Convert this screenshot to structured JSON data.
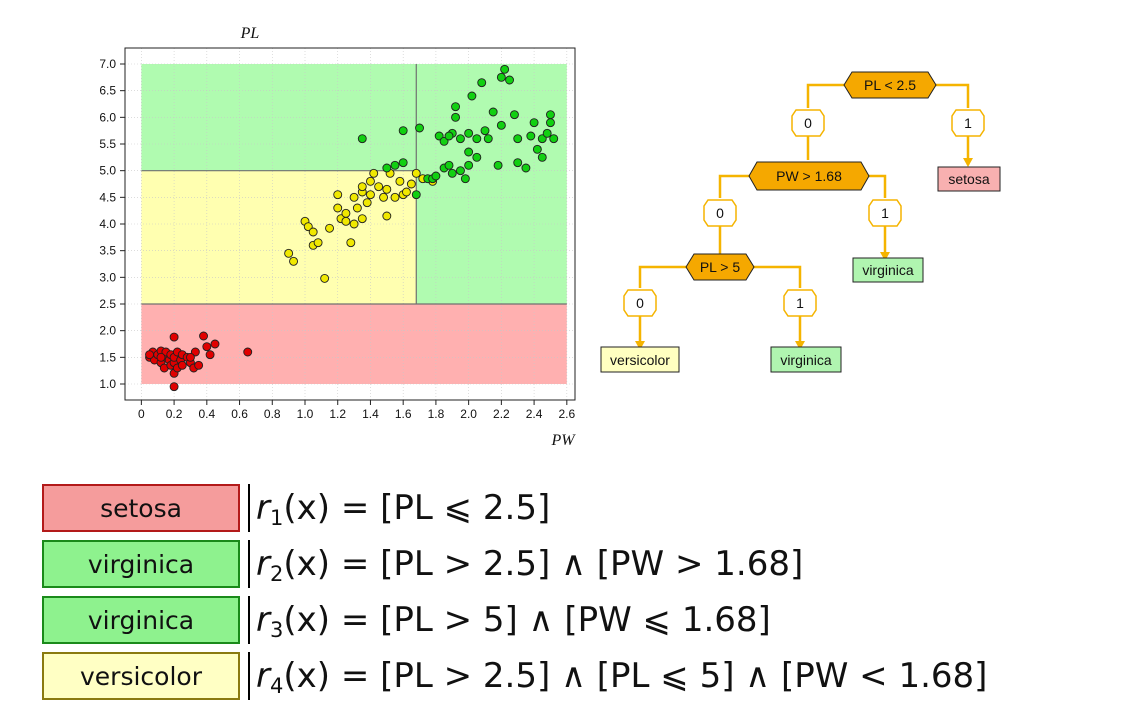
{
  "chart_data": {
    "type": "scatter",
    "title": "",
    "xlabel": "PW",
    "ylabel": "PL",
    "xlim": [
      -0.1,
      2.65
    ],
    "ylim": [
      0.7,
      7.3
    ],
    "xticks": [
      "0",
      "0.2",
      "0.4",
      "0.6",
      "0.8",
      "1.0",
      "1.2",
      "1.4",
      "1.6",
      "1.8",
      "2.0",
      "2.2",
      "2.4",
      "2.6"
    ],
    "yticks": [
      "1.0",
      "1.5",
      "2.0",
      "2.5",
      "3.0",
      "3.5",
      "4.0",
      "4.5",
      "5.0",
      "5.5",
      "6.0",
      "6.5",
      "7.0"
    ],
    "grid": true,
    "regions": [
      {
        "class": "setosa",
        "x0": 0.0,
        "x1": 2.6,
        "y0": 1.0,
        "y1": 2.5,
        "color": "#ffb0b0"
      },
      {
        "class": "versicolor",
        "x0": 0.0,
        "x1": 1.68,
        "y0": 2.5,
        "y1": 5.0,
        "color": "#ffffb0"
      },
      {
        "class": "virginica",
        "x0": 1.68,
        "x1": 2.6,
        "y0": 2.5,
        "y1": 7.0,
        "color": "#b0fbb0"
      },
      {
        "class": "virginica",
        "x0": 0.0,
        "x1": 1.68,
        "y0": 5.0,
        "y1": 7.0,
        "color": "#b0fbb0"
      }
    ],
    "series": [
      {
        "class": "setosa",
        "color": "#e00000",
        "points": [
          [
            0.05,
            1.5
          ],
          [
            0.07,
            1.6
          ],
          [
            0.08,
            1.45
          ],
          [
            0.1,
            1.55
          ],
          [
            0.12,
            1.4
          ],
          [
            0.12,
            1.62
          ],
          [
            0.14,
            1.3
          ],
          [
            0.15,
            1.5
          ],
          [
            0.15,
            1.6
          ],
          [
            0.17,
            1.45
          ],
          [
            0.18,
            1.35
          ],
          [
            0.18,
            1.55
          ],
          [
            0.2,
            1.2
          ],
          [
            0.2,
            1.4
          ],
          [
            0.2,
            1.5
          ],
          [
            0.22,
            1.6
          ],
          [
            0.22,
            1.3
          ],
          [
            0.24,
            1.45
          ],
          [
            0.25,
            1.55
          ],
          [
            0.28,
            1.5
          ],
          [
            0.3,
            1.4
          ],
          [
            0.32,
            1.3
          ],
          [
            0.33,
            1.6
          ],
          [
            0.35,
            1.35
          ],
          [
            0.38,
            1.9
          ],
          [
            0.4,
            1.7
          ],
          [
            0.42,
            1.55
          ],
          [
            0.45,
            1.75
          ],
          [
            0.65,
            1.6
          ],
          [
            0.2,
            0.95
          ],
          [
            0.2,
            1.88
          ],
          [
            0.05,
            1.55
          ],
          [
            0.12,
            1.5
          ],
          [
            0.25,
            1.35
          ],
          [
            0.3,
            1.5
          ]
        ]
      },
      {
        "class": "versicolor",
        "color": "#f0e800",
        "points": [
          [
            0.9,
            3.45
          ],
          [
            0.93,
            3.3
          ],
          [
            1.0,
            4.05
          ],
          [
            1.02,
            3.95
          ],
          [
            1.05,
            3.85
          ],
          [
            1.05,
            3.6
          ],
          [
            1.08,
            3.65
          ],
          [
            1.12,
            2.98
          ],
          [
            1.15,
            3.92
          ],
          [
            1.2,
            4.3
          ],
          [
            1.22,
            4.1
          ],
          [
            1.25,
            4.05
          ],
          [
            1.25,
            4.2
          ],
          [
            1.28,
            3.65
          ],
          [
            1.3,
            4.5
          ],
          [
            1.3,
            4.0
          ],
          [
            1.32,
            4.3
          ],
          [
            1.35,
            4.6
          ],
          [
            1.35,
            4.7
          ],
          [
            1.38,
            4.4
          ],
          [
            1.4,
            4.8
          ],
          [
            1.4,
            4.55
          ],
          [
            1.45,
            4.7
          ],
          [
            1.48,
            4.5
          ],
          [
            1.5,
            4.15
          ],
          [
            1.5,
            4.65
          ],
          [
            1.52,
            4.95
          ],
          [
            1.55,
            4.5
          ],
          [
            1.58,
            4.8
          ],
          [
            1.6,
            4.55
          ],
          [
            1.62,
            4.6
          ],
          [
            1.65,
            4.75
          ],
          [
            1.68,
            4.95
          ],
          [
            1.72,
            4.85
          ],
          [
            1.78,
            4.8
          ],
          [
            1.2,
            4.55
          ],
          [
            1.42,
            4.95
          ],
          [
            1.35,
            4.1
          ]
        ]
      },
      {
        "class": "virginica",
        "color": "#11d011",
        "points": [
          [
            1.35,
            5.6
          ],
          [
            1.5,
            5.05
          ],
          [
            1.55,
            5.1
          ],
          [
            1.6,
            5.75
          ],
          [
            1.6,
            5.15
          ],
          [
            1.68,
            4.55
          ],
          [
            1.7,
            5.8
          ],
          [
            1.75,
            4.85
          ],
          [
            1.78,
            4.85
          ],
          [
            1.8,
            4.9
          ],
          [
            1.82,
            5.65
          ],
          [
            1.85,
            5.05
          ],
          [
            1.85,
            5.55
          ],
          [
            1.88,
            5.1
          ],
          [
            1.9,
            5.7
          ],
          [
            1.9,
            4.95
          ],
          [
            1.92,
            6.2
          ],
          [
            1.95,
            5.6
          ],
          [
            1.95,
            5.0
          ],
          [
            1.98,
            4.85
          ],
          [
            2.0,
            5.7
          ],
          [
            2.0,
            5.35
          ],
          [
            2.0,
            5.1
          ],
          [
            2.02,
            6.4
          ],
          [
            2.05,
            5.6
          ],
          [
            2.05,
            5.25
          ],
          [
            2.08,
            6.65
          ],
          [
            2.1,
            5.75
          ],
          [
            2.12,
            5.6
          ],
          [
            2.15,
            6.1
          ],
          [
            2.18,
            5.1
          ],
          [
            2.2,
            5.85
          ],
          [
            2.2,
            6.75
          ],
          [
            2.22,
            6.9
          ],
          [
            2.25,
            6.7
          ],
          [
            2.28,
            6.05
          ],
          [
            2.3,
            5.6
          ],
          [
            2.3,
            5.15
          ],
          [
            2.35,
            5.05
          ],
          [
            2.38,
            5.65
          ],
          [
            2.4,
            5.9
          ],
          [
            2.42,
            5.4
          ],
          [
            2.45,
            5.25
          ],
          [
            2.45,
            5.6
          ],
          [
            2.48,
            5.7
          ],
          [
            2.5,
            6.05
          ],
          [
            2.5,
            5.9
          ],
          [
            2.52,
            5.6
          ],
          [
            1.92,
            6.0
          ],
          [
            1.88,
            5.65
          ]
        ]
      }
    ]
  },
  "tree": {
    "root": "PL < 2.5",
    "root_no": "0",
    "root_yes": "1",
    "leaf_setosa": "setosa",
    "node2": "PW > 1.68",
    "node2_no": "0",
    "node2_yes": "1",
    "leaf_virginica_a": "virginica",
    "node3": "PL > 5",
    "node3_no": "0",
    "node3_yes": "1",
    "leaf_versicolor": "versicolor",
    "leaf_virginica_b": "virginica"
  },
  "rules": [
    {
      "class": "setosa",
      "fn": "r",
      "idx": "1",
      "rest": "(x) = [PL ⩽ 2.5]"
    },
    {
      "class": "virginica",
      "fn": "r",
      "idx": "2",
      "rest": "(x) = [PL > 2.5] ∧ [PW > 1.68]"
    },
    {
      "class": "virginica",
      "fn": "r",
      "idx": "3",
      "rest": "(x) = [PL > 5] ∧ [PW ⩽ 1.68]"
    },
    {
      "class": "versicolor",
      "fn": "r",
      "idx": "4",
      "rest": "(x) = [PL > 2.5] ∧ [PL ⩽ 5] ∧ [PW < 1.68]"
    }
  ],
  "colors": {
    "tree_node": "#f5a800",
    "tree_edge": "#f5b400",
    "leaf_setosa": "#f8b0b0",
    "leaf_virginica": "#b0f5b0",
    "leaf_versicolor": "#ffffc0"
  }
}
